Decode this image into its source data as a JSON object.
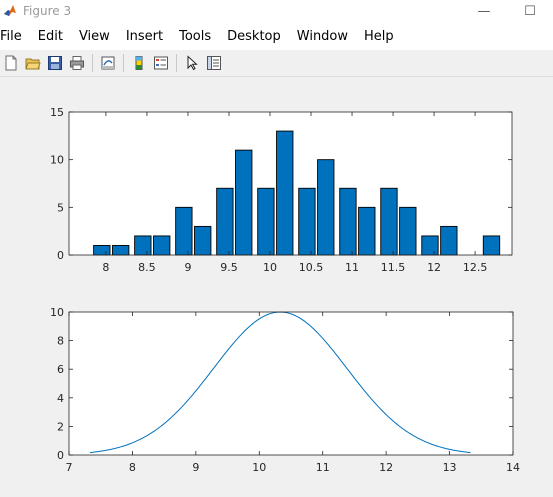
{
  "window": {
    "title": "Figure 3",
    "minimize_glyph": "—",
    "maximize_glyph": "☐"
  },
  "menu": [
    "File",
    "Edit",
    "View",
    "Insert",
    "Tools",
    "Desktop",
    "Window",
    "Help"
  ],
  "toolbar": {
    "icons": [
      "new-figure-icon",
      "open-file-icon",
      "save-icon",
      "print-icon",
      "link-plot-icon",
      "colorbar-icon",
      "legend-icon",
      "edit-plot-arrow-icon",
      "property-inspector-icon"
    ]
  },
  "colors": {
    "bar_fill": "#0072bd",
    "line": "#0072bd",
    "axes_bg": "#ffffff",
    "figure_bg": "#f0f0f0"
  },
  "chart_data": [
    {
      "type": "bar",
      "x": [
        7.95,
        8.18,
        8.45,
        8.68,
        8.95,
        9.18,
        9.45,
        9.68,
        9.95,
        10.18,
        10.45,
        10.68,
        10.95,
        11.18,
        11.45,
        11.68,
        11.95,
        12.18,
        12.7
      ],
      "values": [
        1,
        1,
        2,
        2,
        5,
        3,
        7,
        11,
        7,
        13,
        7,
        10,
        7,
        5,
        7,
        5,
        2,
        3,
        2
      ],
      "bar_width": 0.2,
      "xlim": [
        7.55,
        12.95
      ],
      "ylim": [
        0,
        15
      ],
      "xticks": [
        8,
        8.5,
        9,
        9.5,
        10,
        10.5,
        11,
        11.5,
        12,
        12.5
      ],
      "xtick_labels": [
        "8",
        "8.5",
        "9",
        "9.5",
        "10",
        "10.5",
        "11",
        "11.5",
        "12",
        "12.5"
      ],
      "yticks": [
        0,
        5,
        10,
        15
      ],
      "ytick_labels": [
        "0",
        "5",
        "10",
        "15"
      ],
      "grid": false
    },
    {
      "type": "line",
      "curve": "gaussian",
      "peak_x": 10.33,
      "peak_y": 10,
      "sigma": 1.05,
      "x_start": 7.33,
      "x_end": 13.33,
      "xlim": [
        7,
        14
      ],
      "ylim": [
        0,
        10
      ],
      "xticks": [
        7,
        8,
        9,
        10,
        11,
        12,
        13,
        14
      ],
      "xtick_labels": [
        "7",
        "8",
        "9",
        "10",
        "11",
        "12",
        "13",
        "14"
      ],
      "yticks": [
        0,
        2,
        4,
        6,
        8,
        10
      ],
      "ytick_labels": [
        "0",
        "2",
        "4",
        "6",
        "8",
        "10"
      ],
      "grid": false
    }
  ]
}
